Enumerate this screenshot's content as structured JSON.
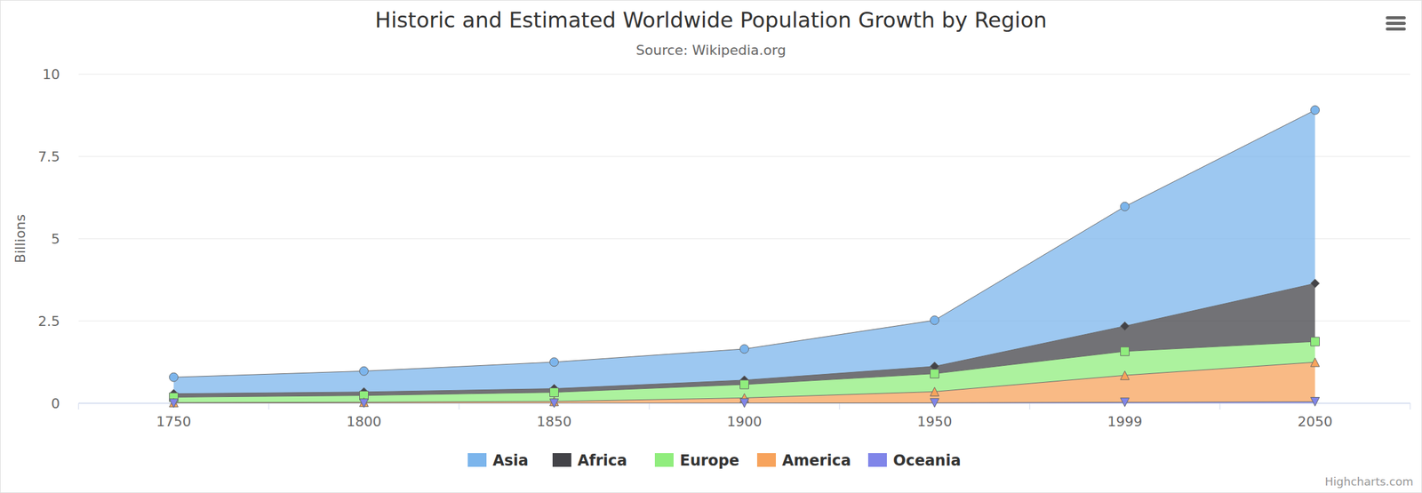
{
  "chart_data": {
    "type": "area",
    "stacked": true,
    "title": "Historic and Estimated Worldwide Population Growth by Region",
    "subtitle": "Source: Wikipedia.org",
    "y_label": "Billions",
    "credits": "Highcharts.com",
    "categories": [
      "1750",
      "1800",
      "1850",
      "1900",
      "1950",
      "1999",
      "2050"
    ],
    "series": [
      {
        "name": "Asia",
        "color": "#7cb5ec",
        "marker": "circle",
        "values": [
          0.502,
          0.635,
          0.809,
          0.947,
          1.402,
          3.634,
          5.268
        ]
      },
      {
        "name": "Africa",
        "color": "#434348",
        "marker": "diamond",
        "values": [
          0.106,
          0.107,
          0.111,
          0.133,
          0.221,
          0.767,
          1.766
        ]
      },
      {
        "name": "Europe",
        "color": "#90ed7d",
        "marker": "square",
        "values": [
          0.163,
          0.203,
          0.276,
          0.408,
          0.547,
          0.729,
          0.628
        ]
      },
      {
        "name": "America",
        "color": "#f7a35c",
        "marker": "triangle",
        "values": [
          0.018,
          0.031,
          0.054,
          0.156,
          0.339,
          0.818,
          1.201
        ]
      },
      {
        "name": "Oceania",
        "color": "#8085e9",
        "marker": "triangle-down",
        "values": [
          0.002,
          0.002,
          0.002,
          0.006,
          0.013,
          0.03,
          0.046
        ]
      }
    ],
    "ylim": [
      0,
      10
    ],
    "yticks": [
      0,
      2.5,
      5,
      7.5,
      10
    ],
    "grid": true,
    "legend": "bottom"
  }
}
